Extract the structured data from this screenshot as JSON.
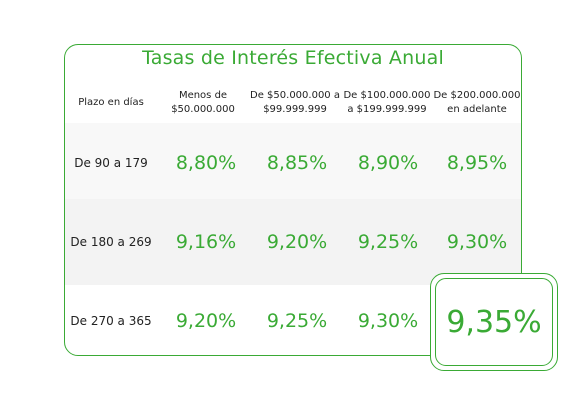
{
  "title": "Tasas de Interés Efectiva Anual",
  "headers": [
    "Plazo en días",
    "Menos de\n$50.000.000",
    "De $50.000.000 a\n$99.999.999",
    "De $100.000.000\na $199.999.999",
    "De $200.000.000\nen adelante"
  ],
  "rows": [
    {
      "label": "De 90 a 179",
      "values": [
        "8,80%",
        "8,85%",
        "8,90%",
        "8,95%"
      ]
    },
    {
      "label": "De 180 a 269",
      "values": [
        "9,16%",
        "9,20%",
        "9,25%",
        "9,30%"
      ]
    },
    {
      "label": "De 270 a 365",
      "values": [
        "9,20%",
        "9,25%",
        "9,30%",
        "9,35%"
      ]
    }
  ],
  "colors": {
    "accent": "#3aaa35",
    "text": "#222222",
    "band": "#f8f8f8"
  }
}
